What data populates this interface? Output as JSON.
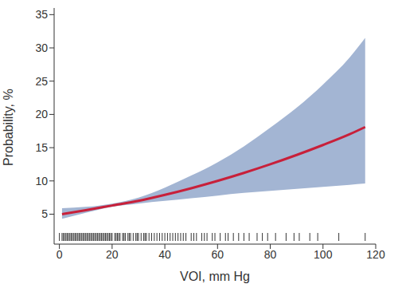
{
  "chart_data": {
    "type": "line",
    "x_label": "VOI, mm Hg",
    "y_label": "Probability, %",
    "x": [
      1,
      10,
      20,
      30,
      40,
      50,
      60,
      70,
      80,
      90,
      100,
      110,
      116
    ],
    "series": [
      {
        "color": "#c8203a",
        "values": [
          5.0,
          5.6,
          6.3,
          7.0,
          7.9,
          8.9,
          10.0,
          11.2,
          12.5,
          13.9,
          15.4,
          17.0,
          18.1
        ]
      }
    ],
    "band": {
      "color": "#a3b5d3",
      "lower": [
        4.3,
        5.2,
        6.1,
        6.6,
        7.0,
        7.4,
        7.8,
        8.2,
        8.5,
        8.8,
        9.1,
        9.4,
        9.6
      ],
      "upper": [
        5.9,
        6.1,
        6.6,
        7.5,
        9.0,
        10.8,
        12.8,
        15.2,
        18.0,
        21.0,
        24.5,
        28.5,
        31.5
      ]
    },
    "rug": [
      0,
      1,
      1.5,
      2,
      2.5,
      3,
      3.5,
      4,
      4.5,
      5,
      5.5,
      6,
      6.5,
      7,
      7.5,
      8,
      8.5,
      9,
      9.5,
      10,
      10.5,
      11,
      11.5,
      12,
      12.5,
      13,
      13.5,
      14,
      14.5,
      15,
      15.5,
      16,
      16.5,
      17,
      17.5,
      18,
      18.5,
      19,
      19.5,
      20,
      21,
      21.5,
      22,
      22.5,
      23,
      24,
      24.5,
      25,
      26,
      26.5,
      27,
      28,
      29,
      29.5,
      30,
      31,
      32,
      32.5,
      33,
      34,
      35,
      36,
      37,
      38,
      39,
      40,
      41,
      42,
      43,
      44,
      45,
      46,
      47,
      48,
      50,
      51,
      52,
      54,
      55,
      56,
      58,
      59,
      61,
      63,
      64,
      66,
      68,
      70,
      72,
      75,
      77,
      79,
      82,
      86,
      89,
      91,
      95,
      98,
      106,
      116
    ],
    "xlim": [
      -2,
      120
    ],
    "xticks": [
      0,
      20,
      40,
      60,
      80,
      100,
      120
    ],
    "ylim": [
      0.5,
      36
    ],
    "yticks": [
      5,
      10,
      15,
      20,
      25,
      30,
      35
    ],
    "grid": false
  }
}
